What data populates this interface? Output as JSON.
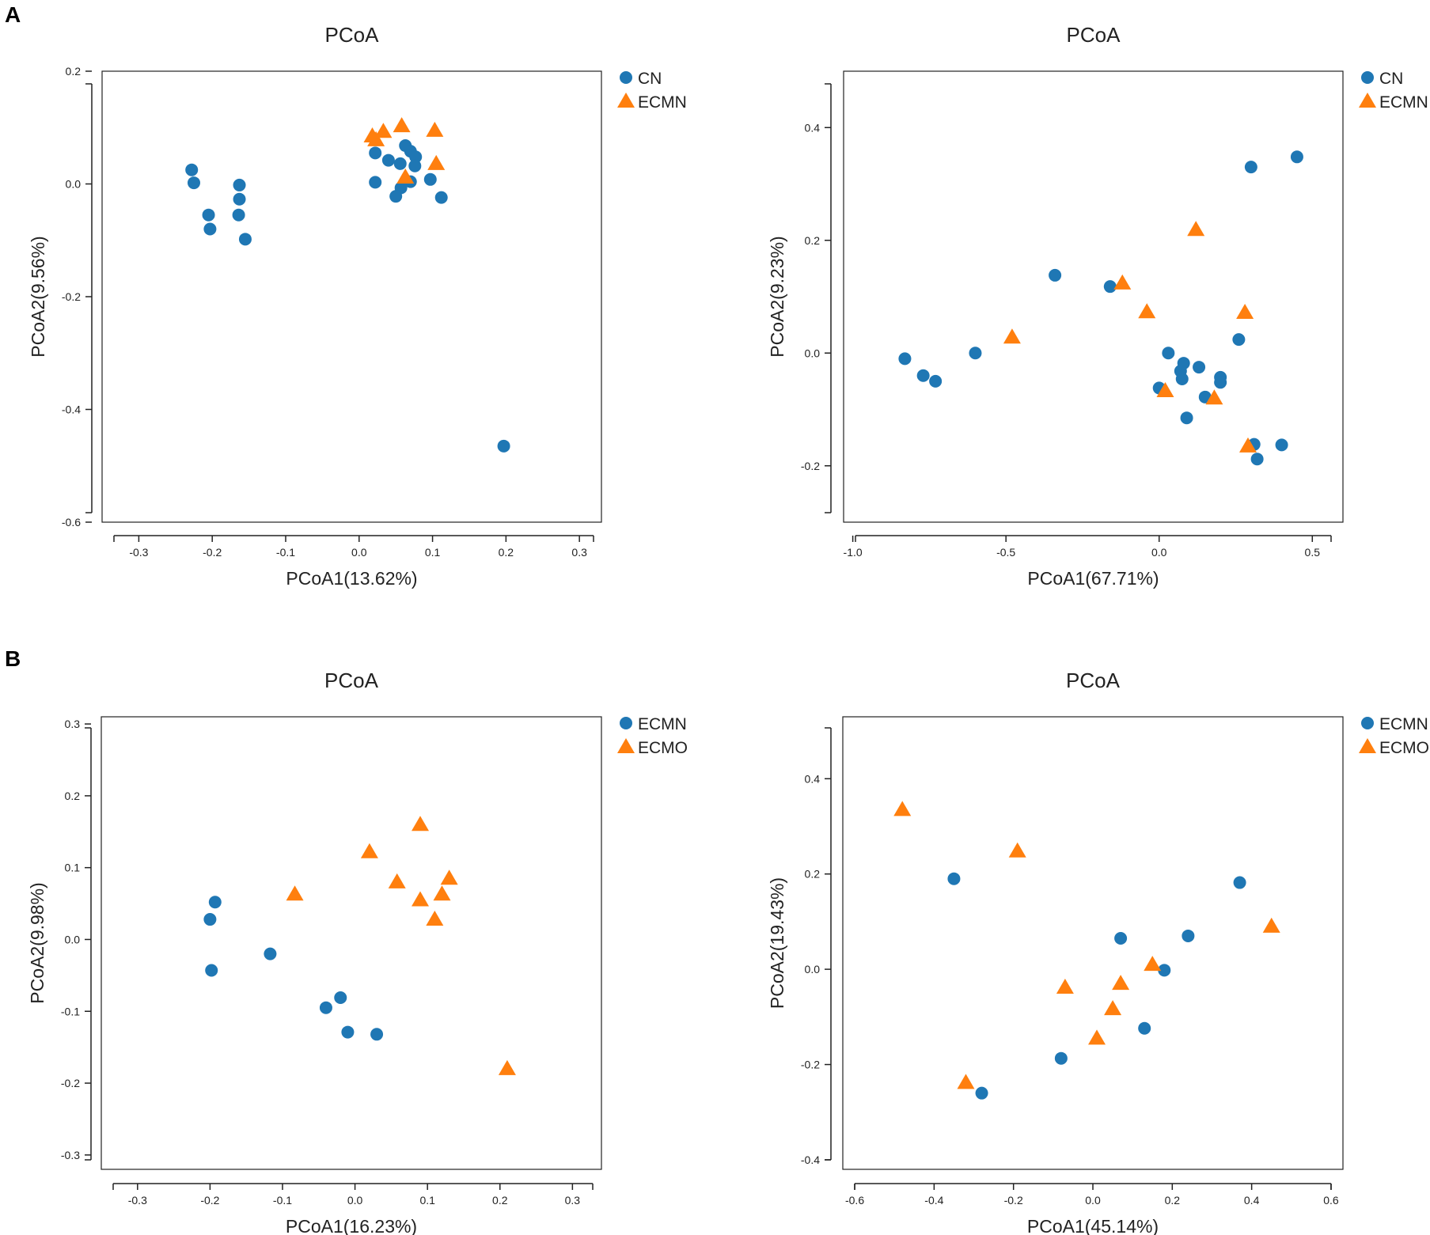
{
  "panel_labels": [
    "A",
    "B"
  ],
  "colors": {
    "circle": "#1f77b4",
    "triangle": "#ff7f0e"
  },
  "chart_data": [
    {
      "id": "A1",
      "type": "scatter",
      "title": "PCoA",
      "xlabel": "PCoA1(13.62%)",
      "ylabel": "PCoA2(9.56%)",
      "xlim": [
        -0.35,
        0.33
      ],
      "ylim": [
        -0.6,
        0.2
      ],
      "xticks": [
        -0.3,
        -0.2,
        -0.1,
        0.0,
        0.1,
        0.2,
        0.3
      ],
      "xtick_labels": [
        "-0.3",
        "-0.2",
        "-0.1",
        "0.0",
        "0.1",
        "0.2",
        "0.3"
      ],
      "yticks": [
        0.2,
        0.0,
        -0.2,
        -0.4,
        -0.6
      ],
      "ytick_labels": [
        "0.2",
        "0.0",
        "-0.2",
        "-0.4",
        "-0.6"
      ],
      "series": [
        {
          "name": "CN",
          "marker": "circle",
          "x": [
            -0.228,
            -0.225,
            -0.205,
            -0.203,
            -0.163,
            -0.163,
            -0.164,
            -0.155,
            0.022,
            0.022,
            0.04,
            0.056,
            0.063,
            0.07,
            0.077,
            0.076,
            0.057,
            0.07,
            0.05,
            0.097,
            0.112,
            0.197
          ],
          "y": [
            0.025,
            0.002,
            -0.055,
            -0.08,
            -0.002,
            -0.027,
            -0.055,
            -0.098,
            0.055,
            0.003,
            0.042,
            0.036,
            0.068,
            0.058,
            0.048,
            0.032,
            -0.007,
            0.004,
            -0.022,
            0.008,
            -0.024,
            -0.465
          ]
        },
        {
          "name": "ECMN",
          "marker": "triangle",
          "x": [
            0.018,
            0.023,
            0.033,
            0.058,
            0.103,
            0.105,
            0.063
          ],
          "y": [
            0.085,
            0.078,
            0.093,
            0.103,
            0.095,
            0.036,
            0.012
          ]
        }
      ]
    },
    {
      "id": "A2",
      "type": "scatter",
      "title": "PCoA",
      "xlabel": "PCoA1(67.71%)",
      "ylabel": "PCoA2(9.23%)",
      "xlim": [
        -1.03,
        0.6
      ],
      "ylim": [
        -0.3,
        0.5
      ],
      "xticks": [
        -1.0,
        -0.5,
        0.0,
        0.5
      ],
      "xtick_labels": [
        "-1.0",
        "-0.5",
        "0.0",
        "0.5"
      ],
      "yticks": [
        0.4,
        0.2,
        0.0,
        -0.2
      ],
      "ytick_labels": [
        "0.4",
        "0.2",
        "0.0",
        "-0.2"
      ],
      "series": [
        {
          "name": "CN",
          "marker": "circle",
          "x": [
            -0.83,
            -0.77,
            -0.73,
            -0.6,
            -0.34,
            -0.16,
            0.0,
            0.03,
            0.07,
            0.075,
            0.08,
            0.13,
            0.15,
            0.09,
            0.2,
            0.2,
            0.26,
            0.3,
            0.31,
            0.32,
            0.4,
            0.45
          ],
          "y": [
            -0.01,
            -0.04,
            -0.05,
            0.0,
            0.138,
            0.118,
            -0.062,
            0.0,
            -0.032,
            -0.046,
            -0.018,
            -0.025,
            -0.078,
            -0.115,
            -0.043,
            -0.052,
            0.024,
            0.33,
            -0.162,
            -0.188,
            -0.163,
            0.348
          ]
        },
        {
          "name": "ECMN",
          "marker": "triangle",
          "x": [
            -0.48,
            -0.12,
            -0.04,
            0.02,
            0.12,
            0.18,
            0.28,
            0.29
          ],
          "y": [
            0.028,
            0.124,
            0.073,
            -0.067,
            0.219,
            -0.08,
            0.072,
            -0.165
          ]
        }
      ]
    },
    {
      "id": "B1",
      "type": "scatter",
      "title": "PCoA",
      "xlabel": "PCoA1(16.23%)",
      "ylabel": "PCoA2(9.98%)",
      "xlim": [
        -0.35,
        0.34
      ],
      "ylim": [
        -0.32,
        0.31
      ],
      "xticks": [
        -0.3,
        -0.2,
        -0.1,
        0.0,
        0.1,
        0.2,
        0.3
      ],
      "xtick_labels": [
        "-0.3",
        "-0.2",
        "-0.1",
        "0.0",
        "0.1",
        "0.2",
        "0.3"
      ],
      "yticks": [
        0.3,
        0.2,
        0.1,
        0.0,
        -0.1,
        -0.2,
        -0.3
      ],
      "ytick_labels": [
        "0.3",
        "0.2",
        "0.1",
        "0.0",
        "-0.1",
        "-0.2",
        "-0.3"
      ],
      "series": [
        {
          "name": "ECMN",
          "marker": "circle",
          "x": [
            -0.2,
            -0.193,
            -0.198,
            -0.117,
            -0.04,
            -0.02,
            -0.01,
            0.03
          ],
          "y": [
            0.028,
            0.052,
            -0.043,
            -0.02,
            -0.095,
            -0.081,
            -0.129,
            -0.132
          ]
        },
        {
          "name": "ECMO",
          "marker": "triangle",
          "x": [
            -0.083,
            0.02,
            0.058,
            0.09,
            0.09,
            0.12,
            0.13,
            0.11,
            0.21
          ],
          "y": [
            0.063,
            0.122,
            0.08,
            0.16,
            0.055,
            0.063,
            0.085,
            0.028,
            -0.18
          ]
        }
      ]
    },
    {
      "id": "B2",
      "type": "scatter",
      "title": "PCoA",
      "xlabel": "PCoA1(45.14%)",
      "ylabel": "PCoA2(19.43%)",
      "xlim": [
        -0.63,
        0.63
      ],
      "ylim": [
        -0.42,
        0.53
      ],
      "xticks": [
        -0.6,
        -0.4,
        -0.2,
        0.0,
        0.2,
        0.4,
        0.6
      ],
      "xtick_labels": [
        "-0.6",
        "-0.4",
        "-0.2",
        "0.0",
        "0.2",
        "0.4",
        "0.6"
      ],
      "yticks": [
        0.4,
        0.2,
        0.0,
        -0.2,
        -0.4
      ],
      "ytick_labels": [
        "0.4",
        "0.2",
        "0.0",
        "-0.2",
        "-0.4"
      ],
      "series": [
        {
          "name": "ECMN",
          "marker": "circle",
          "x": [
            -0.35,
            -0.28,
            -0.08,
            0.07,
            0.13,
            0.18,
            0.24,
            0.37
          ],
          "y": [
            0.19,
            -0.26,
            -0.187,
            0.065,
            -0.124,
            -0.002,
            0.07,
            0.182
          ]
        },
        {
          "name": "ECMO",
          "marker": "triangle",
          "x": [
            -0.48,
            -0.19,
            -0.32,
            -0.07,
            0.07,
            0.05,
            0.01,
            0.15,
            0.45
          ],
          "y": [
            0.335,
            0.248,
            -0.238,
            -0.038,
            -0.03,
            -0.083,
            -0.145,
            0.01,
            0.09
          ]
        }
      ]
    }
  ]
}
